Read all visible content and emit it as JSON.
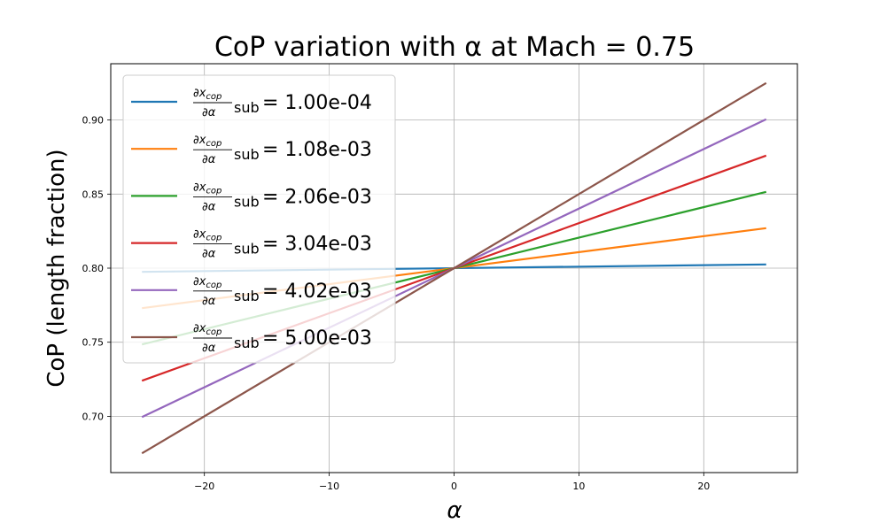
{
  "chart_data": {
    "type": "line",
    "title": "CoP variation with α at Mach = 0.75",
    "xlabel": "α",
    "ylabel": "CoP (length fraction)",
    "xlim": [
      -27.5,
      27.5
    ],
    "ylim": [
      0.662,
      0.938
    ],
    "xticks": [
      -20,
      -10,
      0,
      10,
      20
    ],
    "xtick_labels": [
      "−20",
      "−10",
      "0",
      "10",
      "20"
    ],
    "yticks": [
      0.7,
      0.75,
      0.8,
      0.85,
      0.9
    ],
    "ytick_labels": [
      "0.70",
      "0.75",
      "0.80",
      "0.85",
      "0.90"
    ],
    "grid": true,
    "legend_position": "upper-left",
    "legend_derivative": {
      "numerator": "∂x",
      "numerator_sub": "cop",
      "denominator": "∂α",
      "suffix": "sub"
    },
    "series": [
      {
        "name": "= 1.00e-04",
        "color": "#1f77b4",
        "x": [
          -25,
          25
        ],
        "y": [
          0.7975,
          0.8025
        ]
      },
      {
        "name": "= 1.08e-03",
        "color": "#ff7f0e",
        "x": [
          -25,
          25
        ],
        "y": [
          0.773,
          0.827
        ]
      },
      {
        "name": "= 2.06e-03",
        "color": "#2ca02c",
        "x": [
          -25,
          25
        ],
        "y": [
          0.7485,
          0.8515
        ]
      },
      {
        "name": "= 3.04e-03",
        "color": "#d62728",
        "x": [
          -25,
          25
        ],
        "y": [
          0.724,
          0.876
        ]
      },
      {
        "name": "= 4.02e-03",
        "color": "#9467bd",
        "x": [
          -25,
          25
        ],
        "y": [
          0.6995,
          0.9005
        ]
      },
      {
        "name": "= 5.00e-03",
        "color": "#8c564b",
        "x": [
          -25,
          25
        ],
        "y": [
          0.675,
          0.925
        ]
      }
    ]
  }
}
